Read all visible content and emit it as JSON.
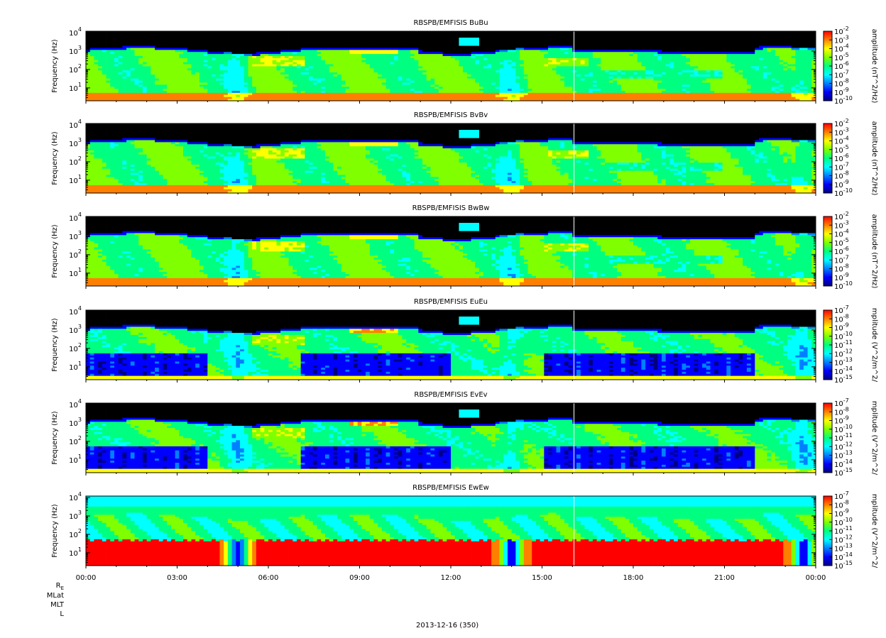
{
  "chart_data": [
    {
      "type": "heatmap",
      "title": "RBSPB/EMFISIS  BuBu",
      "ylabel": "Frequency (Hz)",
      "yscale": "log",
      "ylim": [
        2,
        12000
      ],
      "yticks": [
        {
          "base": "10",
          "exp": "4",
          "value": 10000
        },
        {
          "base": "10",
          "exp": "3",
          "value": 1000
        },
        {
          "base": "10",
          "exp": "2",
          "value": 100
        },
        {
          "base": "10",
          "exp": "1",
          "value": 10
        }
      ],
      "colorbar": {
        "label": "amplitude (nT^2/Hz)",
        "scale": "log",
        "range": [
          1e-10,
          0.01
        ],
        "ticks": [
          {
            "base": "10",
            "exp": "-2"
          },
          {
            "base": "10",
            "exp": "-3"
          },
          {
            "base": "10",
            "exp": "-4"
          },
          {
            "base": "10",
            "exp": "-5"
          },
          {
            "base": "10",
            "exp": "-6"
          },
          {
            "base": "10",
            "exp": "-7"
          },
          {
            "base": "10",
            "exp": "-8"
          },
          {
            "base": "10",
            "exp": "-9"
          },
          {
            "base": "10",
            "exp": "-10"
          }
        ]
      },
      "component": "magnetic"
    },
    {
      "type": "heatmap",
      "title": "RBSPB/EMFISIS  BvBv",
      "ylabel": "Frequency (Hz)",
      "yscale": "log",
      "ylim": [
        2,
        12000
      ],
      "yticks": [
        {
          "base": "10",
          "exp": "4",
          "value": 10000
        },
        {
          "base": "10",
          "exp": "3",
          "value": 1000
        },
        {
          "base": "10",
          "exp": "2",
          "value": 100
        },
        {
          "base": "10",
          "exp": "1",
          "value": 10
        }
      ],
      "colorbar": {
        "label": "amplitude (nT^2/Hz)",
        "scale": "log",
        "range": [
          1e-10,
          0.01
        ],
        "ticks": [
          {
            "base": "10",
            "exp": "-2"
          },
          {
            "base": "10",
            "exp": "-3"
          },
          {
            "base": "10",
            "exp": "-4"
          },
          {
            "base": "10",
            "exp": "-5"
          },
          {
            "base": "10",
            "exp": "-6"
          },
          {
            "base": "10",
            "exp": "-7"
          },
          {
            "base": "10",
            "exp": "-8"
          },
          {
            "base": "10",
            "exp": "-9"
          },
          {
            "base": "10",
            "exp": "-10"
          }
        ]
      },
      "component": "magnetic"
    },
    {
      "type": "heatmap",
      "title": "RBSPB/EMFISIS  BwBw",
      "ylabel": "Frequency (Hz)",
      "yscale": "log",
      "ylim": [
        2,
        12000
      ],
      "yticks": [
        {
          "base": "10",
          "exp": "4",
          "value": 10000
        },
        {
          "base": "10",
          "exp": "3",
          "value": 1000
        },
        {
          "base": "10",
          "exp": "2",
          "value": 100
        },
        {
          "base": "10",
          "exp": "1",
          "value": 10
        }
      ],
      "colorbar": {
        "label": "amplitude (nT^2/Hz)",
        "scale": "log",
        "range": [
          1e-10,
          0.01
        ],
        "ticks": [
          {
            "base": "10",
            "exp": "-2"
          },
          {
            "base": "10",
            "exp": "-3"
          },
          {
            "base": "10",
            "exp": "-4"
          },
          {
            "base": "10",
            "exp": "-5"
          },
          {
            "base": "10",
            "exp": "-6"
          },
          {
            "base": "10",
            "exp": "-7"
          },
          {
            "base": "10",
            "exp": "-8"
          },
          {
            "base": "10",
            "exp": "-9"
          },
          {
            "base": "10",
            "exp": "-10"
          }
        ]
      },
      "component": "magnetic"
    },
    {
      "type": "heatmap",
      "title": "RBSPB/EMFISIS  EuEu",
      "ylabel": "Frequency (Hz)",
      "yscale": "log",
      "ylim": [
        2,
        12000
      ],
      "yticks": [
        {
          "base": "10",
          "exp": "4",
          "value": 10000
        },
        {
          "base": "10",
          "exp": "3",
          "value": 1000
        },
        {
          "base": "10",
          "exp": "2",
          "value": 100
        },
        {
          "base": "10",
          "exp": "1",
          "value": 10
        }
      ],
      "colorbar": {
        "label": "mplitude (V^2/m^2/",
        "scale": "log",
        "range": [
          1e-15,
          1e-07
        ],
        "ticks": [
          {
            "base": "10",
            "exp": "-7"
          },
          {
            "base": "10",
            "exp": "-8"
          },
          {
            "base": "10",
            "exp": "-9"
          },
          {
            "base": "10",
            "exp": "-10"
          },
          {
            "base": "10",
            "exp": "-11"
          },
          {
            "base": "10",
            "exp": "-12"
          },
          {
            "base": "10",
            "exp": "-13"
          },
          {
            "base": "10",
            "exp": "-14"
          },
          {
            "base": "10",
            "exp": "-15"
          }
        ]
      },
      "component": "electric"
    },
    {
      "type": "heatmap",
      "title": "RBSPB/EMFISIS  EvEv",
      "ylabel": "Frequency (Hz)",
      "yscale": "log",
      "ylim": [
        2,
        12000
      ],
      "yticks": [
        {
          "base": "10",
          "exp": "4",
          "value": 10000
        },
        {
          "base": "10",
          "exp": "3",
          "value": 1000
        },
        {
          "base": "10",
          "exp": "2",
          "value": 100
        },
        {
          "base": "10",
          "exp": "1",
          "value": 10
        }
      ],
      "colorbar": {
        "label": "mplitude (V^2/m^2/",
        "scale": "log",
        "range": [
          1e-15,
          1e-07
        ],
        "ticks": [
          {
            "base": "10",
            "exp": "-7"
          },
          {
            "base": "10",
            "exp": "-8"
          },
          {
            "base": "10",
            "exp": "-9"
          },
          {
            "base": "10",
            "exp": "-10"
          },
          {
            "base": "10",
            "exp": "-11"
          },
          {
            "base": "10",
            "exp": "-12"
          },
          {
            "base": "10",
            "exp": "-13"
          },
          {
            "base": "10",
            "exp": "-14"
          },
          {
            "base": "10",
            "exp": "-15"
          }
        ]
      },
      "component": "electric"
    },
    {
      "type": "heatmap",
      "title": "RBSPB/EMFISIS  EwEw",
      "ylabel": "Frequency (Hz)",
      "yscale": "log",
      "ylim": [
        2,
        12000
      ],
      "yticks": [
        {
          "base": "10",
          "exp": "4",
          "value": 10000
        },
        {
          "base": "10",
          "exp": "3",
          "value": 1000
        },
        {
          "base": "10",
          "exp": "2",
          "value": 100
        },
        {
          "base": "10",
          "exp": "1",
          "value": 10
        }
      ],
      "colorbar": {
        "label": "mplitude (V^2/m^2/",
        "scale": "log",
        "range": [
          1e-15,
          1e-07
        ],
        "ticks": [
          {
            "base": "10",
            "exp": "-7"
          },
          {
            "base": "10",
            "exp": "-8"
          },
          {
            "base": "10",
            "exp": "-9"
          },
          {
            "base": "10",
            "exp": "-10"
          },
          {
            "base": "10",
            "exp": "-11"
          },
          {
            "base": "10",
            "exp": "-12"
          },
          {
            "base": "10",
            "exp": "-13"
          },
          {
            "base": "10",
            "exp": "-14"
          },
          {
            "base": "10",
            "exp": "-15"
          }
        ]
      },
      "component": "ew"
    }
  ],
  "xaxis": {
    "ticks": [
      "00:00",
      "03:00",
      "06:00",
      "09:00",
      "12:00",
      "15:00",
      "18:00",
      "21:00",
      "00:00"
    ],
    "minor_per_major": 2,
    "date_label": "2013-12-16 (350)"
  },
  "ephemeris_labels": [
    {
      "text": "R",
      "sub": "E"
    },
    {
      "text": "MLat"
    },
    {
      "text": "MLT"
    },
    {
      "text": "L"
    }
  ],
  "markers": {
    "white_vertical_line_hour": 16.05
  },
  "colors": {
    "background": "#ffffff",
    "void": "#000000",
    "colormap": [
      "#000080",
      "#0000ff",
      "#0080ff",
      "#00ffff",
      "#00ff80",
      "#80ff00",
      "#ffff00",
      "#ff8000",
      "#ff0000"
    ]
  }
}
